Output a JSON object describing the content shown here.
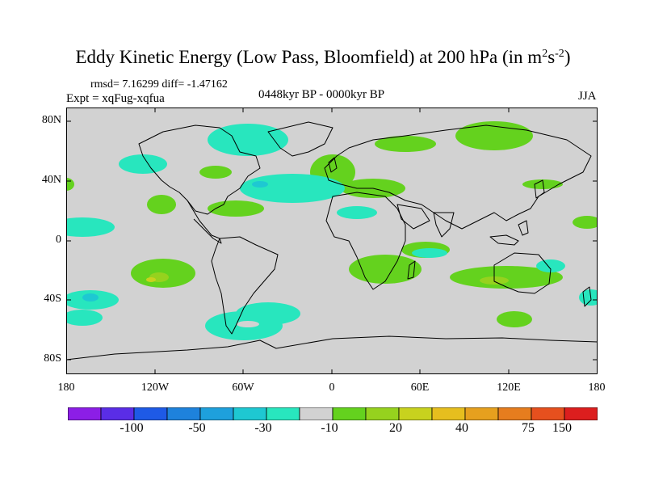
{
  "title": {
    "main": "Eddy Kinetic Energy (Low Pass, Bloomfield) at 200 hPa (in m",
    "sup1": "2",
    "mid": "s",
    "sup2": "-2",
    "end": ")"
  },
  "stats": "rmsd= 7.16299 diff= -1.47162",
  "experiment": "Expt = xqFug-xqfua",
  "period": "0448kyr BP - 0000kyr BP",
  "season": "JJA",
  "lat_labels": [
    "80N",
    "40N",
    "0",
    "40S",
    "80S"
  ],
  "lon_labels": [
    "180",
    "120W",
    "60W",
    "0",
    "60E",
    "120E",
    "180"
  ],
  "colorbar": {
    "labels": [
      "-100",
      "-50",
      "-30",
      "-10",
      "20",
      "40",
      "75",
      "150"
    ],
    "colors": [
      "#8c1ee6",
      "#5a2de6",
      "#1e5ae6",
      "#1e82dc",
      "#1ea0dc",
      "#1ec8d2",
      "#28e6be",
      "#d2d2d2",
      "#64d21e",
      "#96d21e",
      "#c8d21e",
      "#e6be1e",
      "#e6a01e",
      "#e67d1e",
      "#e6501e",
      "#dc1e1e"
    ]
  },
  "colors": {
    "land_line": "#000000",
    "ocean_field": "#d2d2d2",
    "positive": "#64d21e",
    "negative": "#28e6be",
    "strong_positive": "#96d21e",
    "strong_negative": "#1ec8d2"
  }
}
